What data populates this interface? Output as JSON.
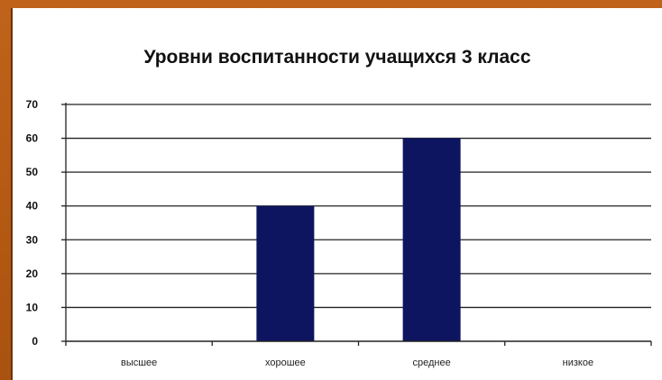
{
  "chart_data": {
    "type": "bar",
    "title": "Уровни воспитанности учащихся 3 класс",
    "categories": [
      "высшее",
      "хорошее",
      "среднее",
      "низкое"
    ],
    "values": [
      0,
      40,
      60,
      0
    ],
    "ylim": [
      0,
      70
    ],
    "yticks": [
      0,
      10,
      20,
      30,
      40,
      50,
      60,
      70
    ],
    "grid": true,
    "legend": "none",
    "bar_color": "#0d1560"
  }
}
